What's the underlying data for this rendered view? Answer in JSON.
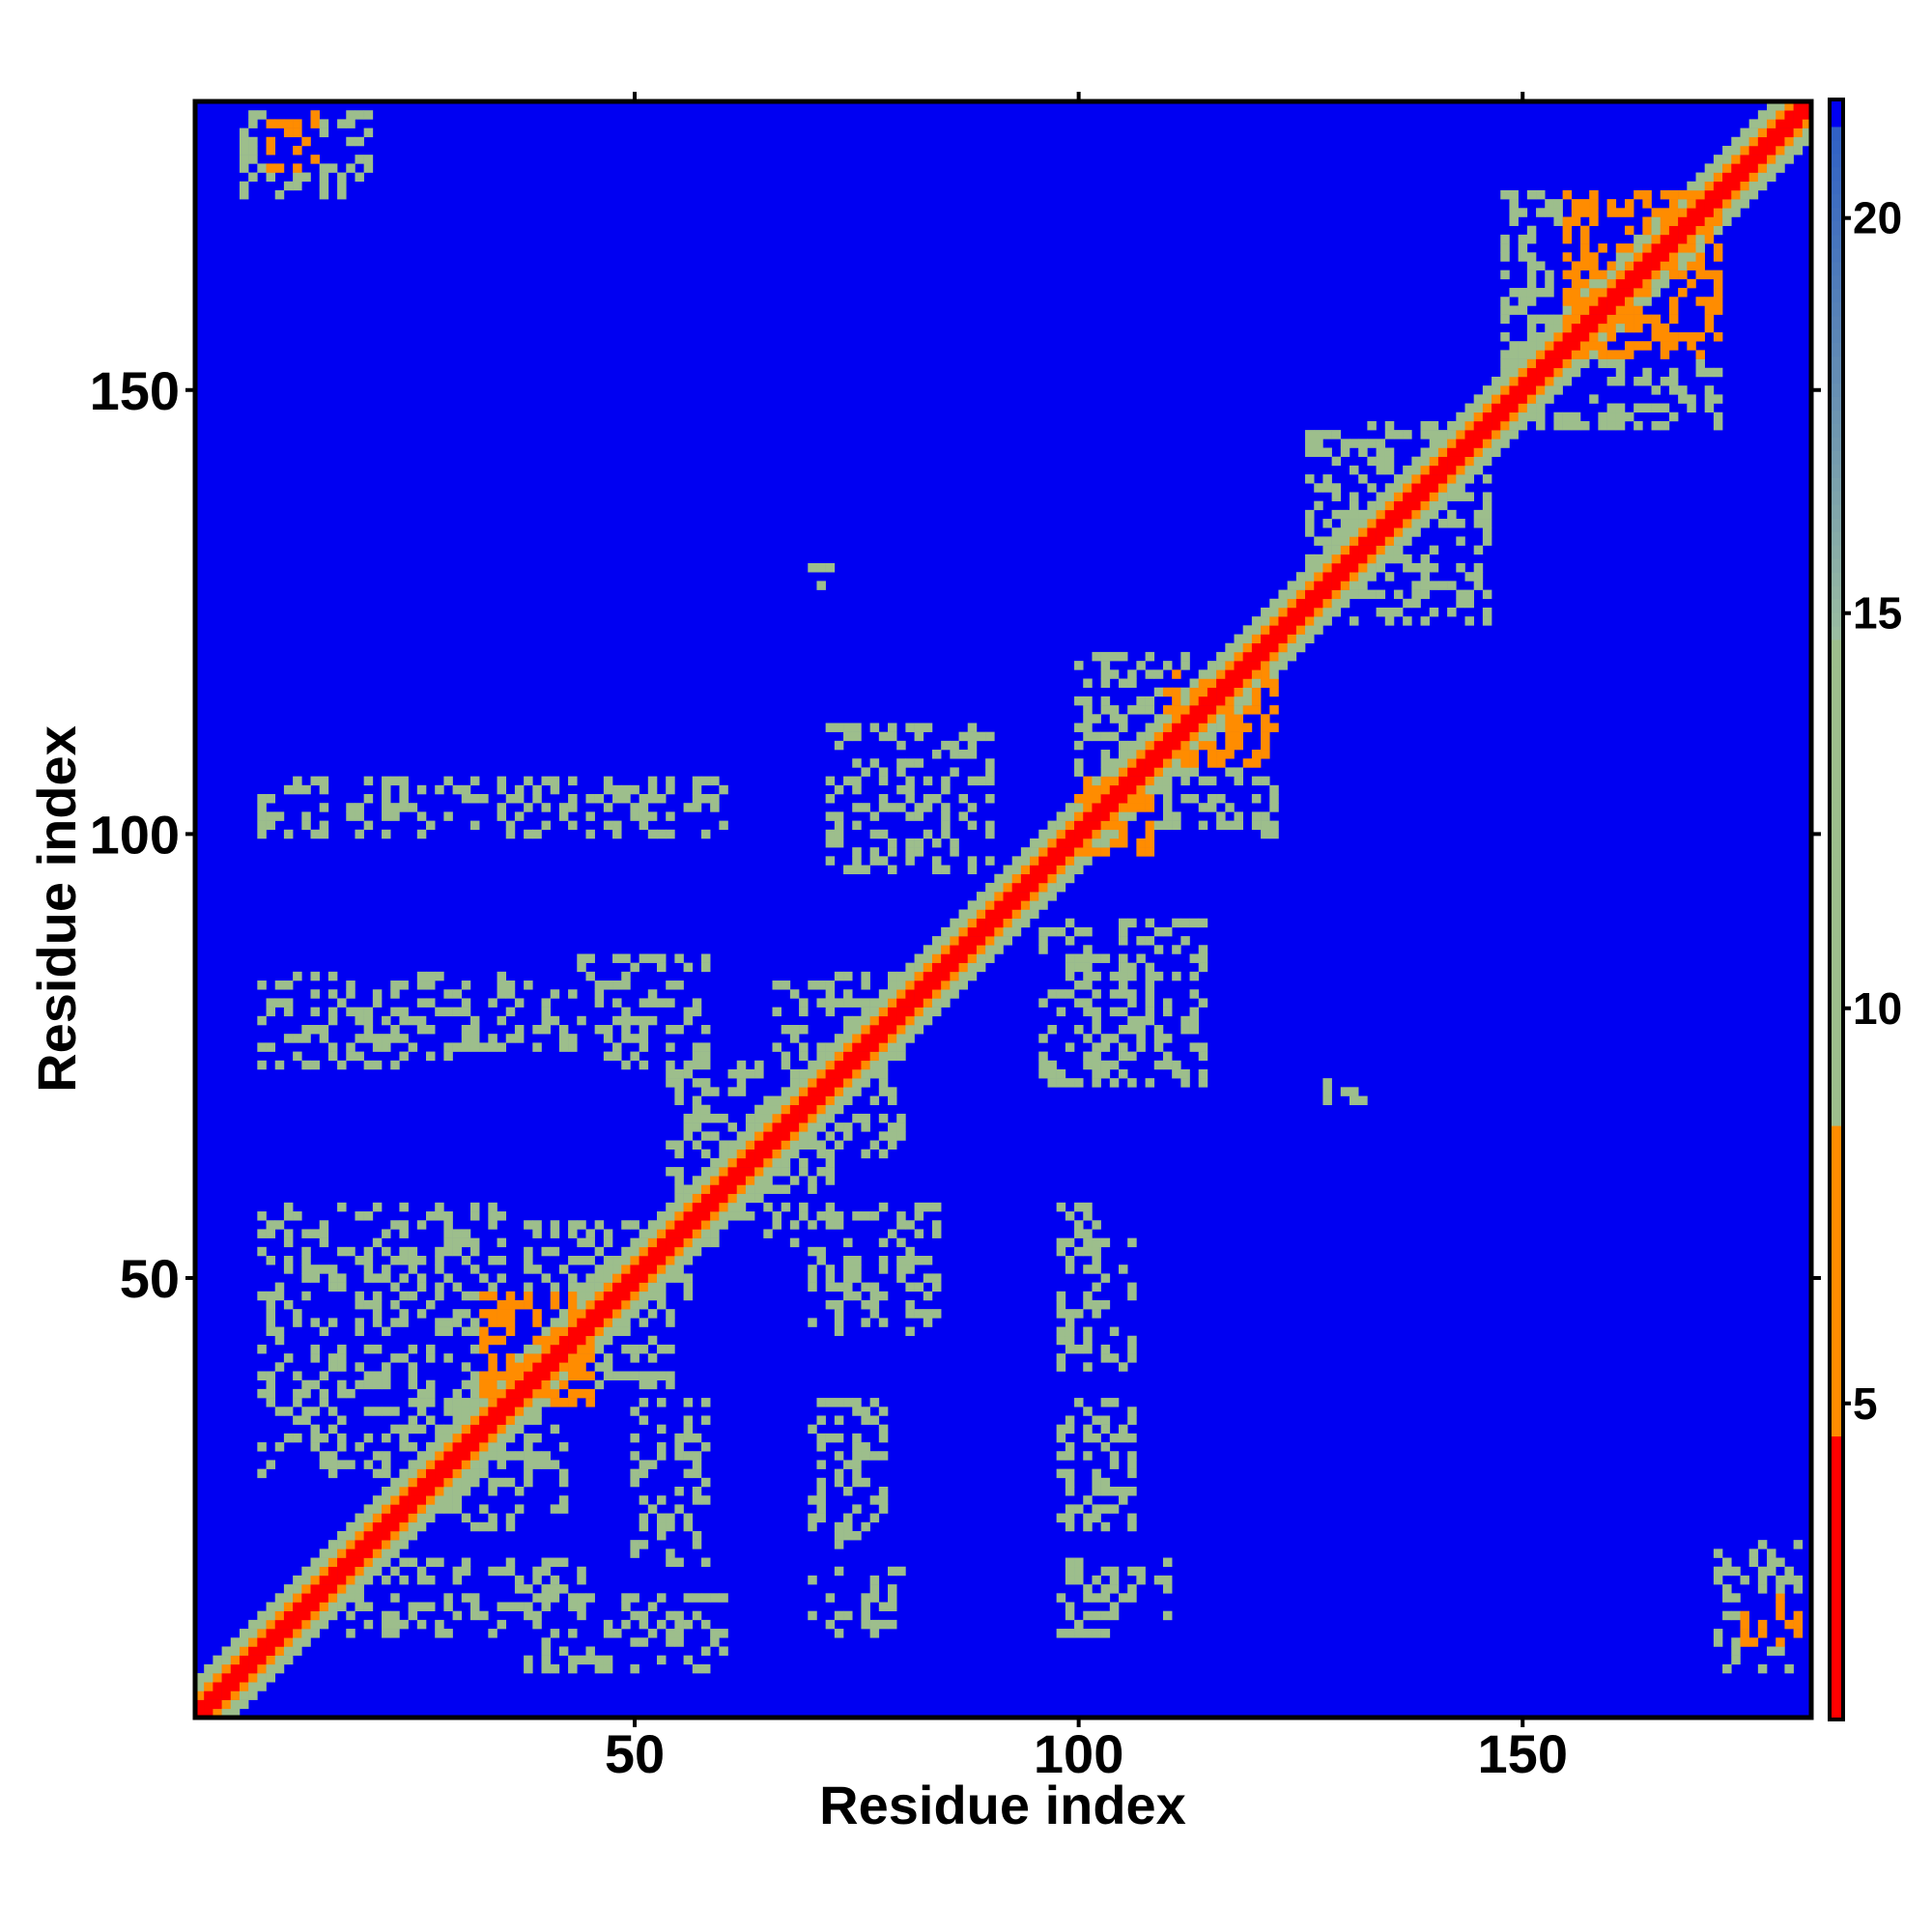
{
  "chart_data": {
    "type": "heatmap",
    "title": "",
    "xlabel": "Residue index",
    "ylabel": "Residue index",
    "n_residues": 182,
    "xlim": [
      1,
      182
    ],
    "ylim": [
      1,
      182
    ],
    "x_ticks": [
      50,
      100,
      150
    ],
    "y_ticks": [
      50,
      100,
      150
    ],
    "x_tick_labels": [
      "50",
      "100",
      "150"
    ],
    "y_tick_labels": [
      "50",
      "100",
      "150"
    ],
    "colorbar": {
      "range": [
        1,
        21.5
      ],
      "ticks": [
        5,
        10,
        15,
        20
      ],
      "tick_labels": [
        "5",
        "10",
        "15",
        "20"
      ],
      "placement": "right"
    },
    "background_value": 21.5,
    "colors": {
      "near": "#ff0000",
      "close": "#ff8c00",
      "contact": "#9dbe8c",
      "far": "#0000f2"
    },
    "diagonal_profile": [
      [
        0,
        1.5
      ],
      [
        1,
        3.5
      ],
      [
        2,
        6.0
      ],
      [
        3,
        9.0
      ],
      [
        4,
        11.5
      ]
    ],
    "contact_regions": [
      {
        "x": [
          22,
          37
        ],
        "y": [
          28,
          42
        ],
        "value": 10
      },
      {
        "x": [
          28,
          42
        ],
        "y": [
          22,
          37
        ],
        "value": 10
      },
      {
        "x": [
          38,
          52
        ],
        "y": [
          44,
          56
        ],
        "value": 10
      },
      {
        "x": [
          44,
          56
        ],
        "y": [
          38,
          52
        ],
        "value": 10
      },
      {
        "x": [
          33,
          45
        ],
        "y": [
          36,
          48
        ],
        "value": 6
      },
      {
        "x": [
          8,
          35
        ],
        "y": [
          44,
          58
        ],
        "value": 11
      },
      {
        "x": [
          8,
          22
        ],
        "y": [
          28,
          46
        ],
        "value": 11
      },
      {
        "x": [
          18,
          44
        ],
        "y": [
          10,
          18
        ],
        "value": 11
      },
      {
        "x": [
          38,
          60
        ],
        "y": [
          6,
          14
        ],
        "value": 11
      },
      {
        "x": [
          50,
          58
        ],
        "y": [
          18,
          36
        ],
        "value": 11
      },
      {
        "x": [
          70,
          80
        ],
        "y": [
          10,
          17
        ],
        "value": 11
      },
      {
        "x": [
          70,
          78
        ],
        "y": [
          20,
          36
        ],
        "value": 11
      },
      {
        "x": [
          70,
          84
        ],
        "y": [
          44,
          58
        ],
        "value": 11
      },
      {
        "x": [
          98,
          110
        ],
        "y": [
          10,
          18
        ],
        "value": 11
      },
      {
        "x": [
          98,
          106
        ],
        "y": [
          22,
          36
        ],
        "value": 11
      },
      {
        "x": [
          98,
          106
        ],
        "y": [
          40,
          58
        ],
        "value": 11
      },
      {
        "x": [
          8,
          30
        ],
        "y": [
          74,
          84
        ],
        "value": 11
      },
      {
        "x": [
          30,
          44
        ],
        "y": [
          76,
          84
        ],
        "value": 11
      },
      {
        "x": [
          42,
          58
        ],
        "y": [
          74,
          86
        ],
        "value": 11
      },
      {
        "x": [
          54,
          68
        ],
        "y": [
          58,
          74
        ],
        "value": 11
      },
      {
        "x": [
          58,
          72
        ],
        "y": [
          54,
          64
        ],
        "value": 11
      },
      {
        "x": [
          66,
          80
        ],
        "y": [
          64,
          84
        ],
        "value": 11
      },
      {
        "x": [
          8,
          60
        ],
        "y": [
          100,
          106
        ],
        "value": 11
      },
      {
        "x": [
          72,
          90
        ],
        "y": [
          96,
          112
        ],
        "value": 11
      },
      {
        "x": [
          96,
          114
        ],
        "y": [
          72,
          90
        ],
        "value": 11
      },
      {
        "x": [
          100,
          122
        ],
        "y": [
          100,
          120
        ],
        "value": 11
      },
      {
        "x": [
          110,
          122
        ],
        "y": [
          108,
          118
        ],
        "value": 6
      },
      {
        "x": [
          100,
          108
        ],
        "y": [
          98,
          106
        ],
        "value": 6
      },
      {
        "x": [
          126,
          146
        ],
        "y": [
          124,
          146
        ],
        "value": 11
      },
      {
        "x": [
          148,
          172
        ],
        "y": [
          146,
          172
        ],
        "value": 11
      },
      {
        "x": [
          155,
          172
        ],
        "y": [
          154,
          172
        ],
        "value": 6
      },
      {
        "x": [
          6,
          20
        ],
        "y": [
          172,
          181
        ],
        "value": 11
      },
      {
        "x": [
          9,
          14
        ],
        "y": [
          175,
          181
        ],
        "value": 6
      },
      {
        "x": [
          172,
          181
        ],
        "y": [
          6,
          20
        ],
        "value": 11
      },
      {
        "x": [
          175,
          181
        ],
        "y": [
          9,
          14
        ],
        "value": 6
      },
      {
        "x": [
          70,
          72
        ],
        "y": [
          128,
          131
        ],
        "value": 11
      },
      {
        "x": [
          128,
          132
        ],
        "y": [
          70,
          72
        ],
        "value": 11
      }
    ],
    "grid": false
  }
}
